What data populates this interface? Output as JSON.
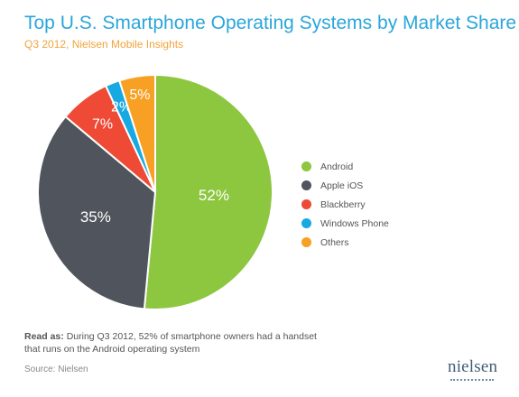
{
  "title": "Top U.S. Smartphone Operating Systems by Market Share",
  "subtitle": "Q3 2012, Nielsen Mobile Insights",
  "note": {
    "label": "Read as:",
    "text": "During Q3 2012, 52% of smartphone owners had a handset that runs on the Android operating system"
  },
  "source": "Source: Nielsen",
  "logo": "nielsen",
  "colors": {
    "title": "#2aa6da",
    "subtitle": "#f2a33a"
  },
  "chart_data": {
    "type": "pie",
    "title": "Top U.S. Smartphone Operating Systems by Market Share",
    "subtitle": "Q3 2012, Nielsen Mobile Insights",
    "legend_position": "right",
    "slices": [
      {
        "label": "Android",
        "value": 52,
        "display": "52%",
        "color": "#8dc63f"
      },
      {
        "label": "Apple iOS",
        "value": 35,
        "display": "35%",
        "color": "#50545c"
      },
      {
        "label": "Blackberry",
        "value": 7,
        "display": "7%",
        "color": "#ee4a35"
      },
      {
        "label": "Windows Phone",
        "value": 2,
        "display": "2%",
        "color": "#17a9e1"
      },
      {
        "label": "Others",
        "value": 5,
        "display": "5%",
        "color": "#f7a023"
      }
    ]
  }
}
